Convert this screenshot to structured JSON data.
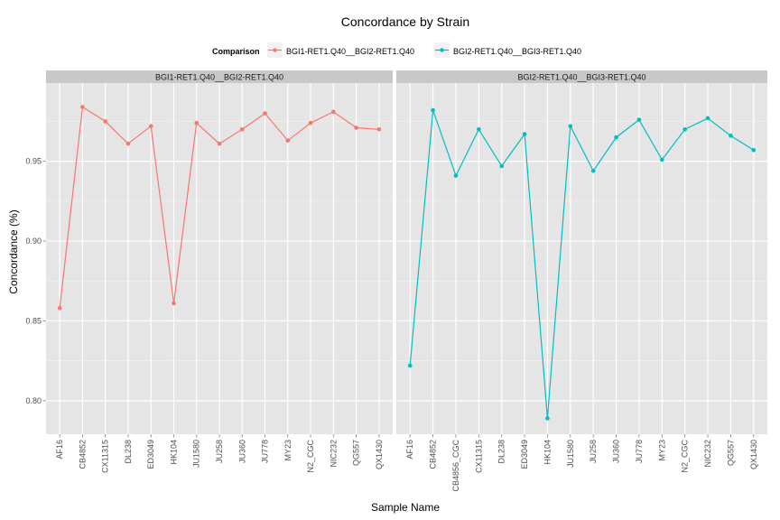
{
  "chart_data": {
    "type": "line",
    "title": "Concordance by Strain",
    "xlabel": "Sample Name",
    "ylabel": "Concordance (%)",
    "ylim": [
      0.779,
      0.999
    ],
    "yticks": [
      0.8,
      0.85,
      0.9,
      0.95
    ],
    "ytick_labels": [
      "0.80",
      "0.85",
      "0.90",
      "0.95"
    ],
    "grid": true,
    "legend": {
      "title": "Comparison",
      "position": "top",
      "entries": [
        {
          "name": "BGI1-RET1.Q40__BGI2-RET1.Q40",
          "color": "#F8766D"
        },
        {
          "name": "BGI2-RET1.Q40__BGI3-RET1.Q40",
          "color": "#00BFC4"
        }
      ]
    },
    "panels": [
      {
        "strip": "BGI1-RET1.Q40__BGI2-RET1.Q40",
        "series_name": "BGI1-RET1.Q40__BGI2-RET1.Q40",
        "color": "#F8766D",
        "categories": [
          "AF16",
          "CB4852",
          "CX11315",
          "DL238",
          "ED3049",
          "HK104",
          "JU1580",
          "JU258",
          "JU360",
          "JU778",
          "MY23",
          "N2_CGC",
          "NIC232",
          "QG557",
          "QX1430"
        ],
        "values": [
          0.858,
          0.984,
          0.975,
          0.961,
          0.972,
          0.861,
          0.974,
          0.961,
          0.97,
          0.98,
          0.963,
          0.974,
          0.981,
          0.971,
          0.97
        ]
      },
      {
        "strip": "BGI2-RET1.Q40__BGI3-RET1.Q40",
        "series_name": "BGI2-RET1.Q40__BGI3-RET1.Q40",
        "color": "#00BFC4",
        "categories": [
          "AF16",
          "CB4852",
          "CB4856_CGC",
          "CX11315",
          "DL238",
          "ED3049",
          "HK104",
          "JU1580",
          "JU258",
          "JU360",
          "JU778",
          "MY23",
          "N2_CGC",
          "NIC232",
          "QG557",
          "QX1430"
        ],
        "values": [
          0.822,
          0.982,
          0.941,
          0.97,
          0.947,
          0.967,
          0.789,
          0.972,
          0.944,
          0.965,
          0.976,
          0.951,
          0.97,
          0.977,
          0.966,
          0.957
        ]
      }
    ]
  }
}
